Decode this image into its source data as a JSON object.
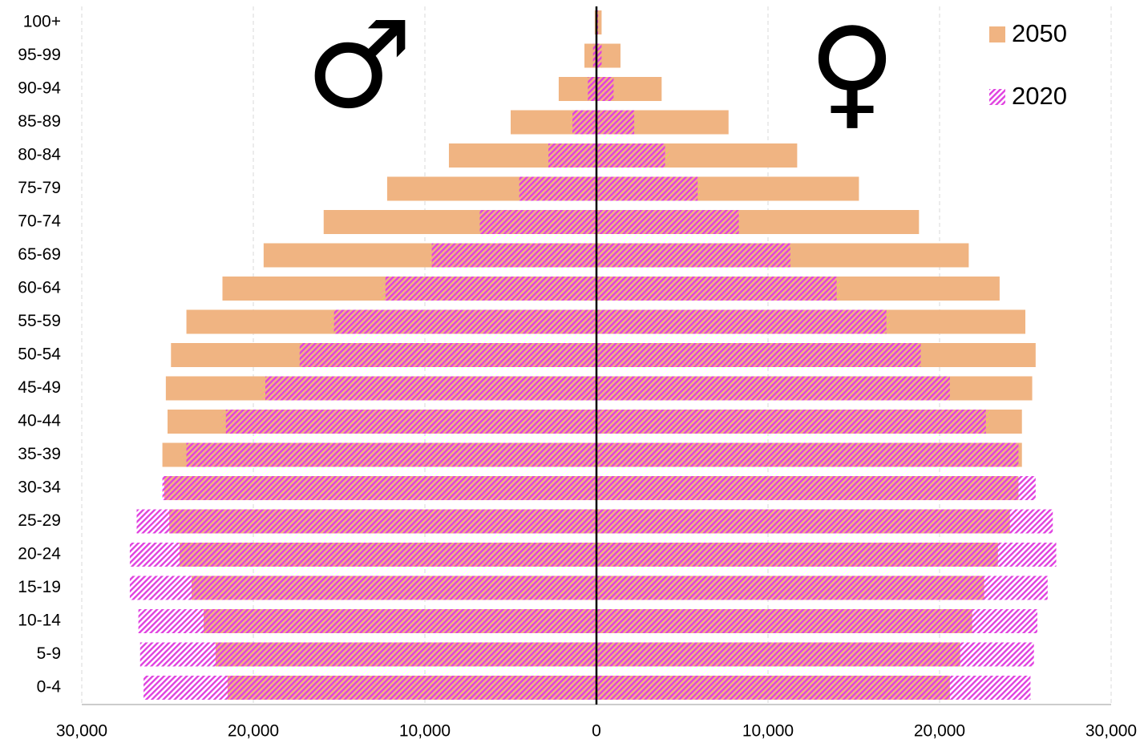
{
  "chart_data": {
    "type": "pyramid",
    "categories": [
      "100+",
      "95-99",
      "90-94",
      "85-89",
      "80-84",
      "75-79",
      "70-74",
      "65-69",
      "60-64",
      "55-59",
      "50-54",
      "45-49",
      "40-44",
      "35-39",
      "30-34",
      "25-29",
      "20-24",
      "15-19",
      "10-14",
      "5-9",
      "0-4"
    ],
    "series": [
      {
        "name": "2050",
        "color": "#f0b482",
        "pattern": "solid",
        "male": [
          -100,
          -700,
          -2200,
          -5000,
          -8600,
          -12200,
          -15900,
          -19400,
          -21800,
          -23900,
          -24800,
          -25100,
          -25000,
          -25300,
          -25200,
          -24900,
          -24300,
          -23600,
          -22900,
          -22200,
          -21500
        ],
        "female": [
          300,
          1400,
          3800,
          7700,
          11700,
          15300,
          18800,
          21700,
          23500,
          25000,
          25600,
          25400,
          24800,
          24800,
          24600,
          24100,
          23400,
          22600,
          21900,
          21200,
          20600
        ]
      },
      {
        "name": "2020",
        "color": "#e040e0",
        "pattern": "hatch",
        "male": [
          0,
          -200,
          -500,
          -1400,
          -2800,
          -4500,
          -6800,
          -9600,
          -12300,
          -15300,
          -17300,
          -19300,
          -21600,
          -23900,
          -25300,
          -26800,
          -27200,
          -27200,
          -26700,
          -26600,
          -26400
        ],
        "female": [
          100,
          300,
          1000,
          2200,
          4000,
          5900,
          8300,
          11300,
          14000,
          16900,
          18900,
          20600,
          22700,
          24600,
          25600,
          26600,
          26800,
          26300,
          25700,
          25500,
          25300
        ]
      }
    ],
    "annotations": [
      "♂",
      "♀"
    ],
    "xlim": [
      -30000,
      30000
    ],
    "xticks": [
      {
        "value": -30000,
        "label": "30,000"
      },
      {
        "value": -20000,
        "label": "20,000"
      },
      {
        "value": -10000,
        "label": "10,000"
      },
      0,
      {
        "value": 10000,
        "label": "10,000"
      },
      {
        "value": 20000,
        "label": "20,000"
      },
      {
        "value": 30000,
        "label": "30,000"
      }
    ],
    "grid": true,
    "legend": "top-right"
  }
}
